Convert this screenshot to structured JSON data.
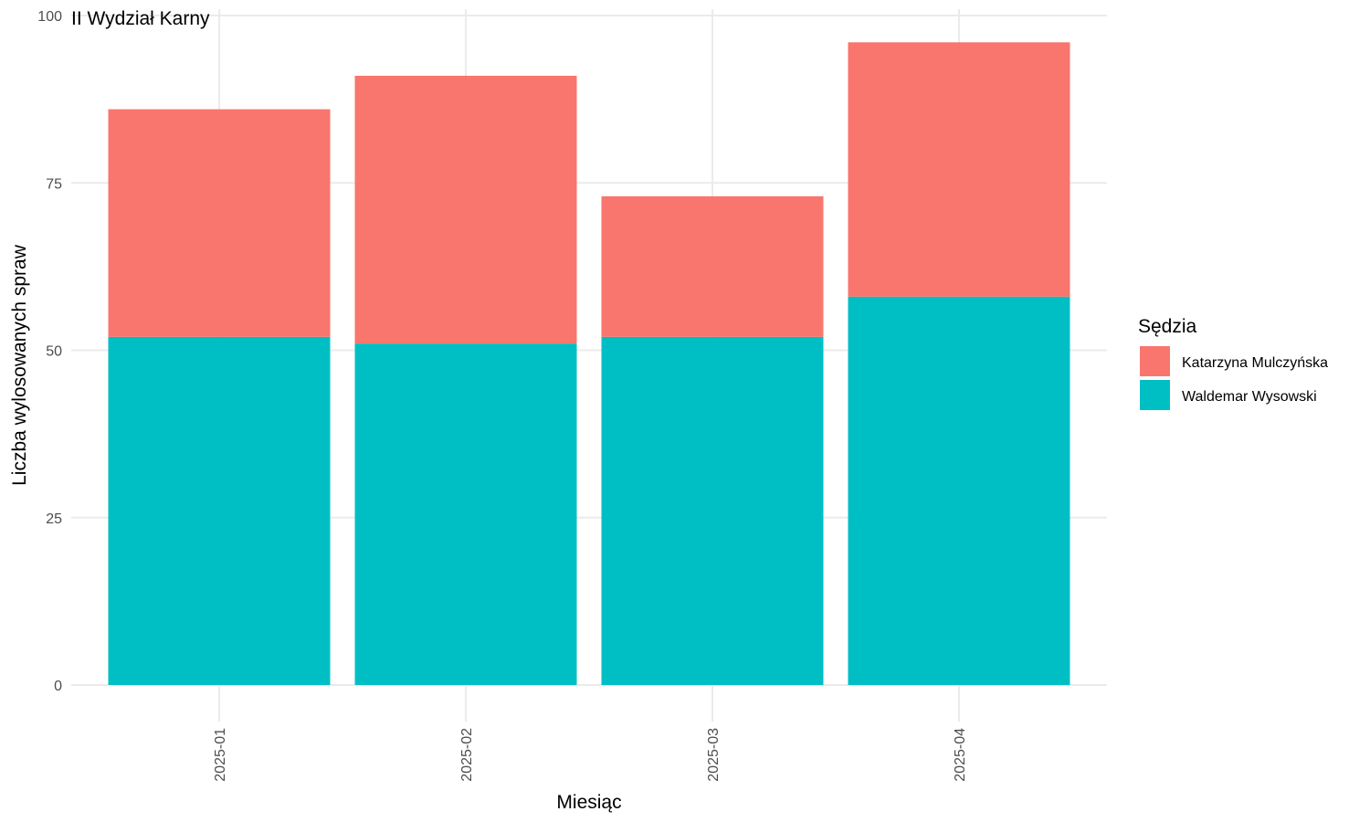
{
  "chart_data": {
    "type": "bar",
    "stacked": true,
    "title": "II Wydział Karny",
    "xlabel": "Miesiąc",
    "ylabel": "Liczba wylosowanych spraw",
    "categories": [
      "2025-01",
      "2025-02",
      "2025-03",
      "2025-04"
    ],
    "ylim": [
      0,
      100
    ],
    "yticks": [
      0,
      25,
      50,
      75,
      100
    ],
    "grid": true,
    "legend": {
      "title": "Sędzia",
      "placement": "right"
    },
    "series": [
      {
        "name": "Waldemar Wysowski",
        "color": "#00BFC4",
        "values": [
          52,
          51,
          52,
          58
        ]
      },
      {
        "name": "Katarzyna Mulczyńska",
        "color": "#F8766D",
        "values": [
          34,
          40,
          21,
          38
        ]
      }
    ],
    "legend_order": [
      "Katarzyna Mulczyńska",
      "Waldemar Wysowski"
    ]
  }
}
